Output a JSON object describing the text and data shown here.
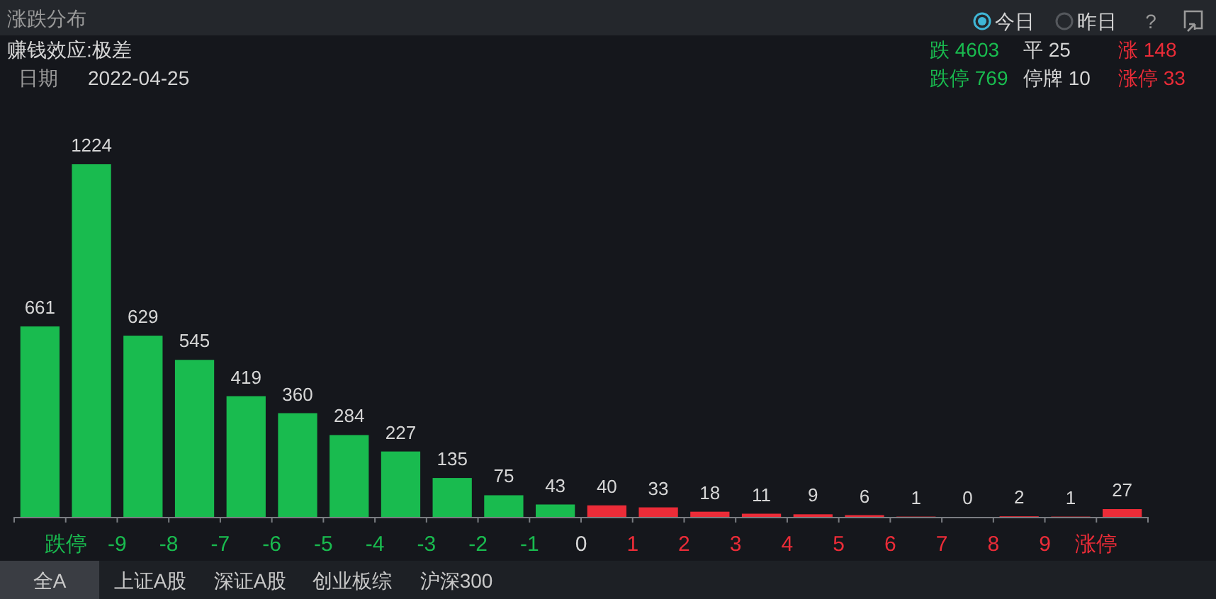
{
  "chart_data": {
    "type": "bar",
    "title": "涨跌分布",
    "subtitle": "赚钱效应:极差",
    "x": [
      -10.5,
      -9.5,
      -8.5,
      -7.5,
      -6.5,
      -5.5,
      -4.5,
      -3.5,
      -2.5,
      -1.5,
      -0.5,
      0.5,
      1.5,
      2.5,
      3.5,
      4.5,
      5.5,
      6.5,
      7.5,
      8.5,
      9.5,
      10.5
    ],
    "values": [
      661,
      1224,
      629,
      545,
      419,
      360,
      284,
      227,
      135,
      75,
      43,
      40,
      33,
      18,
      11,
      9,
      6,
      1,
      0,
      2,
      1,
      27
    ],
    "colors": [
      "#19bb4f",
      "#19bb4f",
      "#19bb4f",
      "#19bb4f",
      "#19bb4f",
      "#19bb4f",
      "#19bb4f",
      "#19bb4f",
      "#19bb4f",
      "#19bb4f",
      "#19bb4f",
      "#ec2c38",
      "#ec2c38",
      "#ec2c38",
      "#ec2c38",
      "#ec2c38",
      "#ec2c38",
      "#ec2c38",
      "#ec2c38",
      "#ec2c38",
      "#ec2c38",
      "#ec2c38"
    ],
    "xlim": [
      -11,
      11
    ],
    "xticks": [
      {
        "value": -11,
        "label": null
      },
      {
        "value": -10,
        "label": "跌停"
      },
      -9,
      -8,
      -7,
      -6,
      -5,
      -4,
      -3,
      -2,
      -1,
      0,
      1,
      2,
      3,
      4,
      5,
      6,
      7,
      8,
      9,
      {
        "value": 10,
        "label": "涨停"
      },
      {
        "value": 11,
        "label": null
      }
    ],
    "tick_labels": "x",
    "data_labels": true,
    "annotations": [
      "日期",
      "2022-04-25",
      "跌 4603",
      "平 25",
      "涨 148",
      "跌停 769",
      "停牌 10",
      "涨停 33",
      "今日",
      "昨日",
      "?",
      "全A",
      "上证A股",
      "深证A股",
      "创业板综",
      "沪深300"
    ]
  }
}
